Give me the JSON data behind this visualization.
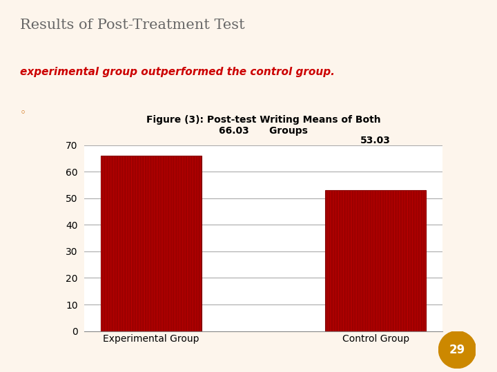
{
  "title_line1": "Figure (3): Post-test Writing Means of Both",
  "title_line2": "Groups",
  "label_exp_value": "66.03",
  "label_ctrl_value": "53.03",
  "categories": [
    "Experimental Group",
    "Control Group"
  ],
  "values": [
    66.03,
    53.03
  ],
  "bar_color_face": "#CC0000",
  "hatch_pattern": "|||||||",
  "ylim": [
    0,
    70
  ],
  "yticks": [
    0,
    10,
    20,
    30,
    40,
    50,
    60,
    70
  ],
  "slide_title": "Results of Post-Treatment Test",
  "subtitle_text": "experimental group outperformed the control group.",
  "subtitle_color": "#CC0000",
  "bullet_color": "#CC6600",
  "page_number": "29",
  "page_badge_color": "#CC8800",
  "background_color": "#FDF5EC",
  "slide_bg": "#FFFFFF",
  "title_color": "#666666",
  "grid_color": "#AAAAAA",
  "bar_width": 0.45
}
